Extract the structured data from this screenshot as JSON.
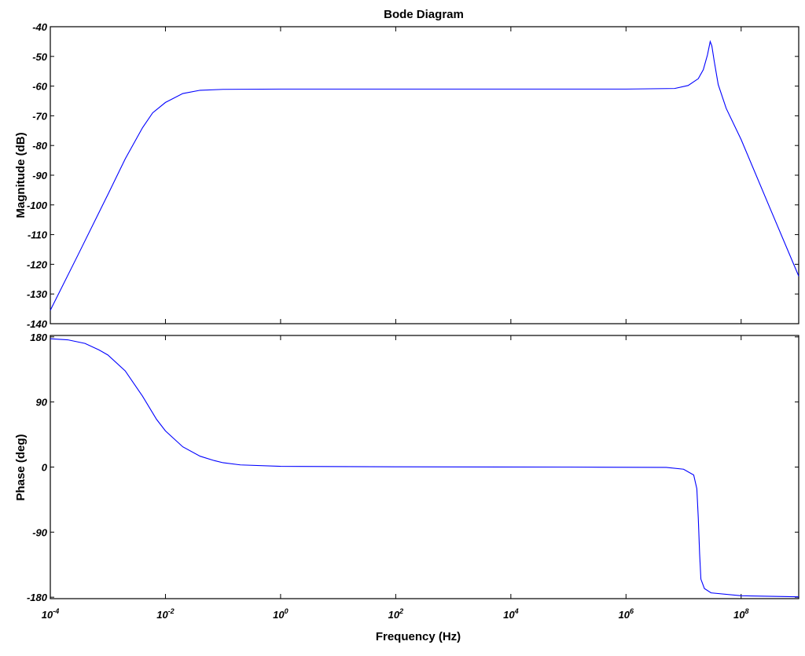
{
  "chart_data": {
    "type": "line",
    "title": "Bode Diagram",
    "xlabel": "Frequency  (Hz)",
    "x_scale": "log",
    "xlim": [
      0.0001,
      1000000000
    ],
    "x_ticks": [
      {
        "base": "10",
        "exp": "-4",
        "value": 0.0001
      },
      {
        "base": "10",
        "exp": "-2",
        "value": 0.01
      },
      {
        "base": "10",
        "exp": "0",
        "value": 1
      },
      {
        "base": "10",
        "exp": "2",
        "value": 100
      },
      {
        "base": "10",
        "exp": "4",
        "value": 10000
      },
      {
        "base": "10",
        "exp": "6",
        "value": 1000000
      },
      {
        "base": "10",
        "exp": "8",
        "value": 100000000
      }
    ],
    "line_color": "#0000ff",
    "grid": false,
    "panels": [
      {
        "id": "magnitude",
        "ylabel": "Magnitude (dB)",
        "ylim": [
          -140,
          -40
        ],
        "y_ticks": [
          "-40",
          "-50",
          "-60",
          "-70",
          "-80",
          "-90",
          "-100",
          "-110",
          "-120",
          "-130",
          "-140"
        ],
        "y_tick_values": [
          -40,
          -50,
          -60,
          -70,
          -80,
          -90,
          -100,
          -110,
          -120,
          -130,
          -140
        ],
        "points": [
          [
            0.0001,
            -135.5
          ],
          [
            0.0003,
            -117
          ],
          [
            0.001,
            -96.5
          ],
          [
            0.002,
            -84.5
          ],
          [
            0.004,
            -74
          ],
          [
            0.006,
            -69
          ],
          [
            0.01,
            -65.5
          ],
          [
            0.02,
            -62.5
          ],
          [
            0.04,
            -61.4
          ],
          [
            0.1,
            -61.1
          ],
          [
            1,
            -61
          ],
          [
            100,
            -61
          ],
          [
            10000,
            -61
          ],
          [
            1000000,
            -61
          ],
          [
            7000000,
            -60.8
          ],
          [
            12000000,
            -59.8
          ],
          [
            18000000,
            -57.5
          ],
          [
            22000000,
            -54.5
          ],
          [
            26000000,
            -49.5
          ],
          [
            29000000,
            -45
          ],
          [
            31000000,
            -46.5
          ],
          [
            34000000,
            -51.5
          ],
          [
            40000000,
            -59.5
          ],
          [
            55000000,
            -67.5
          ],
          [
            100000000,
            -78
          ],
          [
            300000000,
            -100
          ],
          [
            1000000000,
            -124
          ]
        ]
      },
      {
        "id": "phase",
        "ylabel": "Phase (deg)",
        "ylim": [
          -182,
          182
        ],
        "y_ticks": [
          "180",
          "90",
          "0",
          "-90",
          "-180"
        ],
        "y_tick_values": [
          180,
          90,
          0,
          -90,
          -180
        ],
        "points": [
          [
            0.0001,
            177.5
          ],
          [
            0.0002,
            176
          ],
          [
            0.0004,
            171
          ],
          [
            0.0007,
            162
          ],
          [
            0.001,
            155
          ],
          [
            0.002,
            133
          ],
          [
            0.004,
            98
          ],
          [
            0.007,
            66
          ],
          [
            0.01,
            50
          ],
          [
            0.02,
            28
          ],
          [
            0.04,
            15
          ],
          [
            0.07,
            9
          ],
          [
            0.1,
            6
          ],
          [
            0.2,
            3
          ],
          [
            1,
            1
          ],
          [
            100,
            0.3
          ],
          [
            100000,
            0
          ],
          [
            5000000,
            -0.5
          ],
          [
            10000000,
            -3
          ],
          [
            15000000,
            -11
          ],
          [
            17000000,
            -30
          ],
          [
            18000000,
            -70
          ],
          [
            19000000,
            -120
          ],
          [
            20000000,
            -155
          ],
          [
            23000000,
            -168
          ],
          [
            30000000,
            -174
          ],
          [
            100000000,
            -178
          ],
          [
            1000000000,
            -179.5
          ]
        ]
      }
    ]
  }
}
